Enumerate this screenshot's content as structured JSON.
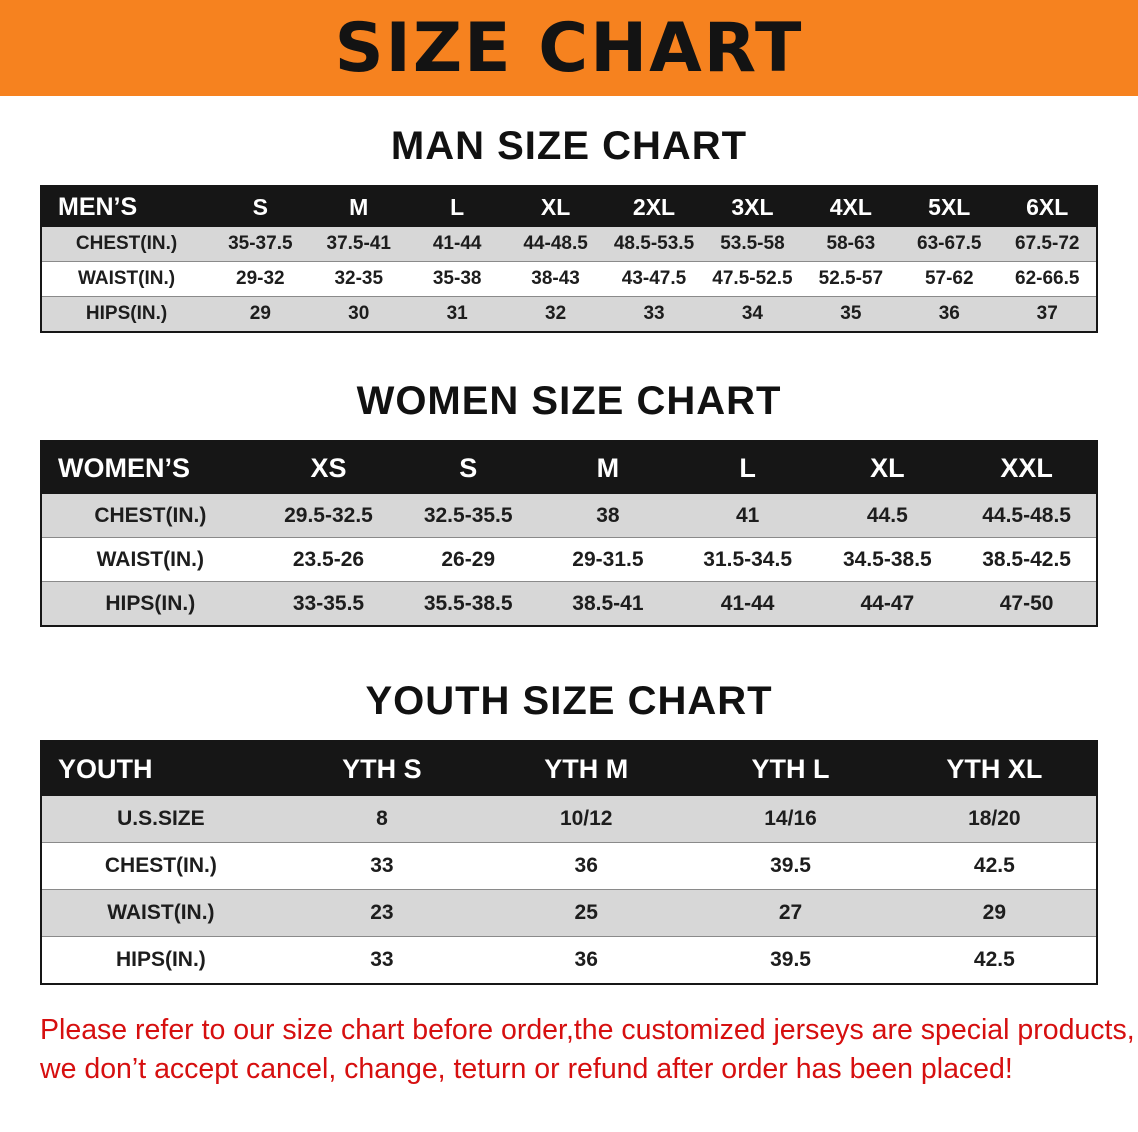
{
  "colors": {
    "banner-orange": "#f6821f",
    "header-bar": "#161616",
    "row-gray": "#d7d7d7",
    "row-white": "#ffffff",
    "disclaimer-red": "#d60f0f",
    "ink": "#141414"
  },
  "banner": {
    "title": "SIZE CHART"
  },
  "sections": [
    {
      "id": "men",
      "heading": "MAN SIZE CHART",
      "table": {
        "header": [
          "MEN’S",
          "S",
          "M",
          "L",
          "XL",
          "2XL",
          "3XL",
          "4XL",
          "5XL",
          "6XL"
        ],
        "rows": [
          [
            "CHEST(IN.)",
            "35-37.5",
            "37.5-41",
            "41-44",
            "44-48.5",
            "48.5-53.5",
            "53.5-58",
            "58-63",
            "63-67.5",
            "67.5-72"
          ],
          [
            "WAIST(IN.)",
            "29-32",
            "32-35",
            "35-38",
            "38-43",
            "43-47.5",
            "47.5-52.5",
            "52.5-57",
            "57-62",
            "62-66.5"
          ],
          [
            "HIPS(IN.)",
            "29",
            "30",
            "31",
            "32",
            "33",
            "34",
            "35",
            "36",
            "37"
          ]
        ]
      }
    },
    {
      "id": "women",
      "heading": "WOMEN SIZE CHART",
      "table": {
        "header": [
          "WOMEN’S",
          "XS",
          "S",
          "M",
          "L",
          "XL",
          "XXL"
        ],
        "rows": [
          [
            "CHEST(IN.)",
            "29.5-32.5",
            "32.5-35.5",
            "38",
            "41",
            "44.5",
            "44.5-48.5"
          ],
          [
            "WAIST(IN.)",
            "23.5-26",
            "26-29",
            "29-31.5",
            "31.5-34.5",
            "34.5-38.5",
            "38.5-42.5"
          ],
          [
            "HIPS(IN.)",
            "33-35.5",
            "35.5-38.5",
            "38.5-41",
            "41-44",
            "44-47",
            "47-50"
          ]
        ]
      }
    },
    {
      "id": "youth",
      "heading": "YOUTH SIZE CHART",
      "table": {
        "header": [
          "YOUTH",
          "YTH S",
          "YTH M",
          "YTH L",
          "YTH XL"
        ],
        "rows": [
          [
            "U.S.SIZE",
            "8",
            "10/12",
            "14/16",
            "18/20"
          ],
          [
            "CHEST(IN.)",
            "33",
            "36",
            "39.5",
            "42.5"
          ],
          [
            "WAIST(IN.)",
            "23",
            "25",
            "27",
            "29"
          ],
          [
            "HIPS(IN.)",
            "33",
            "36",
            "39.5",
            "42.5"
          ]
        ]
      }
    }
  ],
  "disclaimer": {
    "line1": "Please refer to our size chart before order,the customized jerseys are special products,",
    "line2": "we don’t accept cancel, change, teturn or refund after order has been placed!"
  }
}
